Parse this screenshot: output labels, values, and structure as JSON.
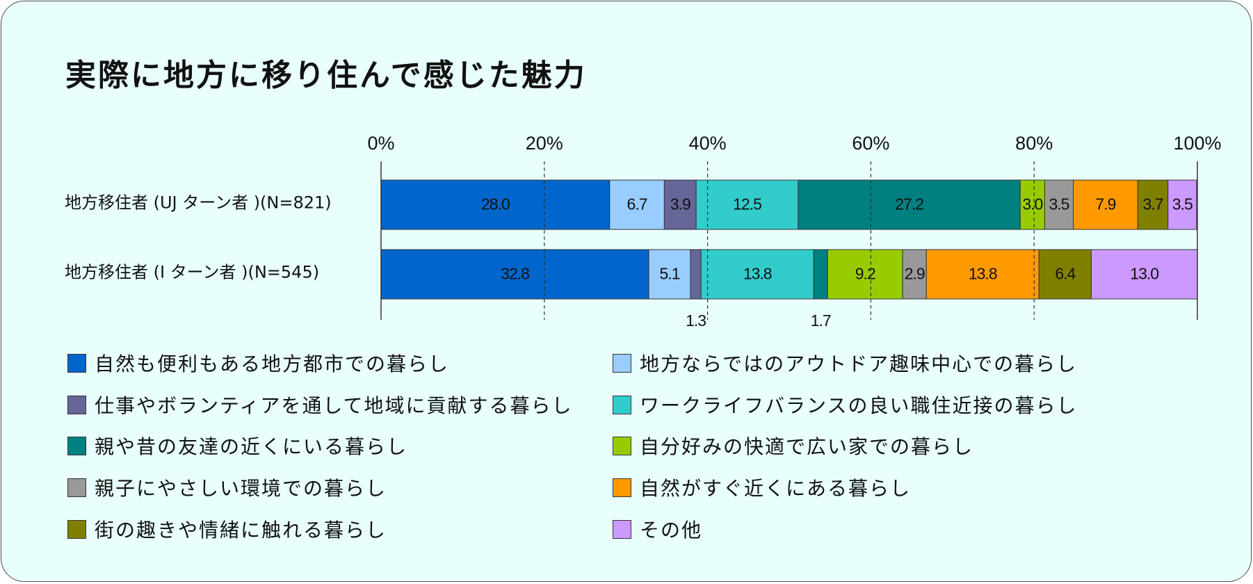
{
  "chart_data": {
    "type": "bar",
    "orientation": "horizontal",
    "stacked": "percent",
    "title": "実際に地方に移り住んで感じた魅力",
    "xlim": [
      0,
      100
    ],
    "x_ticks": [
      "0%",
      "20%",
      "40%",
      "60%",
      "80%",
      "100%"
    ],
    "grid": "dashed vertical at 20%, 40%, 60%, 80%",
    "categories": [
      "地方移住者 (UJ ターン者 )(N=821)",
      "地方移住者 (I ターン者 )(N=545)"
    ],
    "series": [
      {
        "name": "自然も便利もある地方都市での暮らし",
        "color": "#0066cc",
        "values": [
          28.0,
          32.8
        ],
        "labels": [
          "28.0",
          "32.8"
        ]
      },
      {
        "name": "地方ならではのアウトドア趣味中心での暮らし",
        "color": "#99ccff",
        "values": [
          6.7,
          5.1
        ],
        "labels": [
          "6.7",
          "5.1"
        ]
      },
      {
        "name": "仕事やボランティアを通して地域に貢献する暮らし",
        "color": "#666699",
        "values": [
          3.9,
          1.3
        ],
        "labels": [
          "3.9",
          "1.3"
        ]
      },
      {
        "name": "ワークライフバランスの良い職住近接の暮らし",
        "color": "#33cccc",
        "values": [
          12.5,
          13.8
        ],
        "labels": [
          "12.5",
          "13.8"
        ]
      },
      {
        "name": "親や昔の友達の近くにいる暮らし",
        "color": "#008080",
        "values": [
          27.2,
          1.7
        ],
        "labels": [
          "27.2",
          "1.7"
        ]
      },
      {
        "name": "自分好みの快適で広い家での暮らし",
        "color": "#99cc00",
        "values": [
          3.0,
          9.2
        ],
        "labels": [
          "3.0",
          "9.2"
        ]
      },
      {
        "name": "親子にやさしい環境での暮らし",
        "color": "#999999",
        "values": [
          3.5,
          2.9
        ],
        "labels": [
          "3.5",
          "2.9"
        ]
      },
      {
        "name": "自然がすぐ近くにある暮らし",
        "color": "#ff9900",
        "values": [
          7.9,
          13.8
        ],
        "labels": [
          "7.9",
          "13.8"
        ]
      },
      {
        "name": "街の趣きや情緒に触れる暮らし",
        "color": "#808000",
        "values": [
          3.7,
          6.4
        ],
        "labels": [
          "3.7",
          "6.4"
        ]
      },
      {
        "name": "その他",
        "color": "#cc99ff",
        "values": [
          3.5,
          13.0
        ],
        "labels": [
          "3.5",
          "13.0"
        ]
      }
    ],
    "legend_position": "bottom, two columns"
  }
}
